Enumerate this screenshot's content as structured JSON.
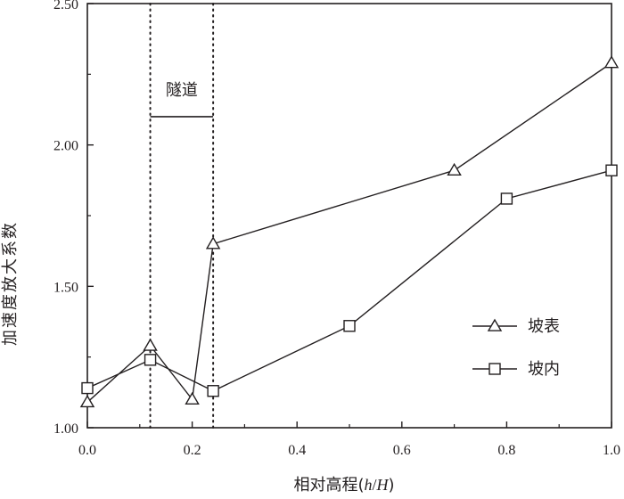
{
  "chart_data": {
    "type": "line",
    "title": "",
    "xlabel": "相对高程(h/H)",
    "xlabel_main": "相对高程(",
    "xlabel_var": "h",
    "xlabel_sep": "/",
    "xlabel_var2": "H",
    "xlabel_close": ")",
    "ylabel": "加速度放大系数",
    "xlim": [
      0.0,
      1.0
    ],
    "ylim": [
      1.0,
      2.5
    ],
    "x_ticks": [
      "0.0",
      "0.2",
      "0.4",
      "0.6",
      "0.8",
      "1.0"
    ],
    "y_ticks": [
      "1.00",
      "1.50",
      "2.00",
      "2.50"
    ],
    "grid": false,
    "legend_position": "right",
    "series": [
      {
        "name": "坡表",
        "marker": "triangle",
        "x": [
          0.0,
          0.12,
          0.2,
          0.24,
          0.7,
          1.0
        ],
        "y": [
          1.09,
          1.29,
          1.1,
          1.65,
          1.91,
          2.29
        ]
      },
      {
        "name": "坡内",
        "marker": "square",
        "x": [
          0.0,
          0.12,
          0.24,
          0.5,
          0.8,
          1.0
        ],
        "y": [
          1.14,
          1.24,
          1.13,
          1.36,
          1.81,
          1.91
        ]
      }
    ],
    "annotation": {
      "label": "隧道",
      "x_start": 0.12,
      "x_end": 0.24,
      "y": 2.1
    },
    "colors": {
      "ink": "#231f20",
      "background": "#ffffff"
    }
  }
}
